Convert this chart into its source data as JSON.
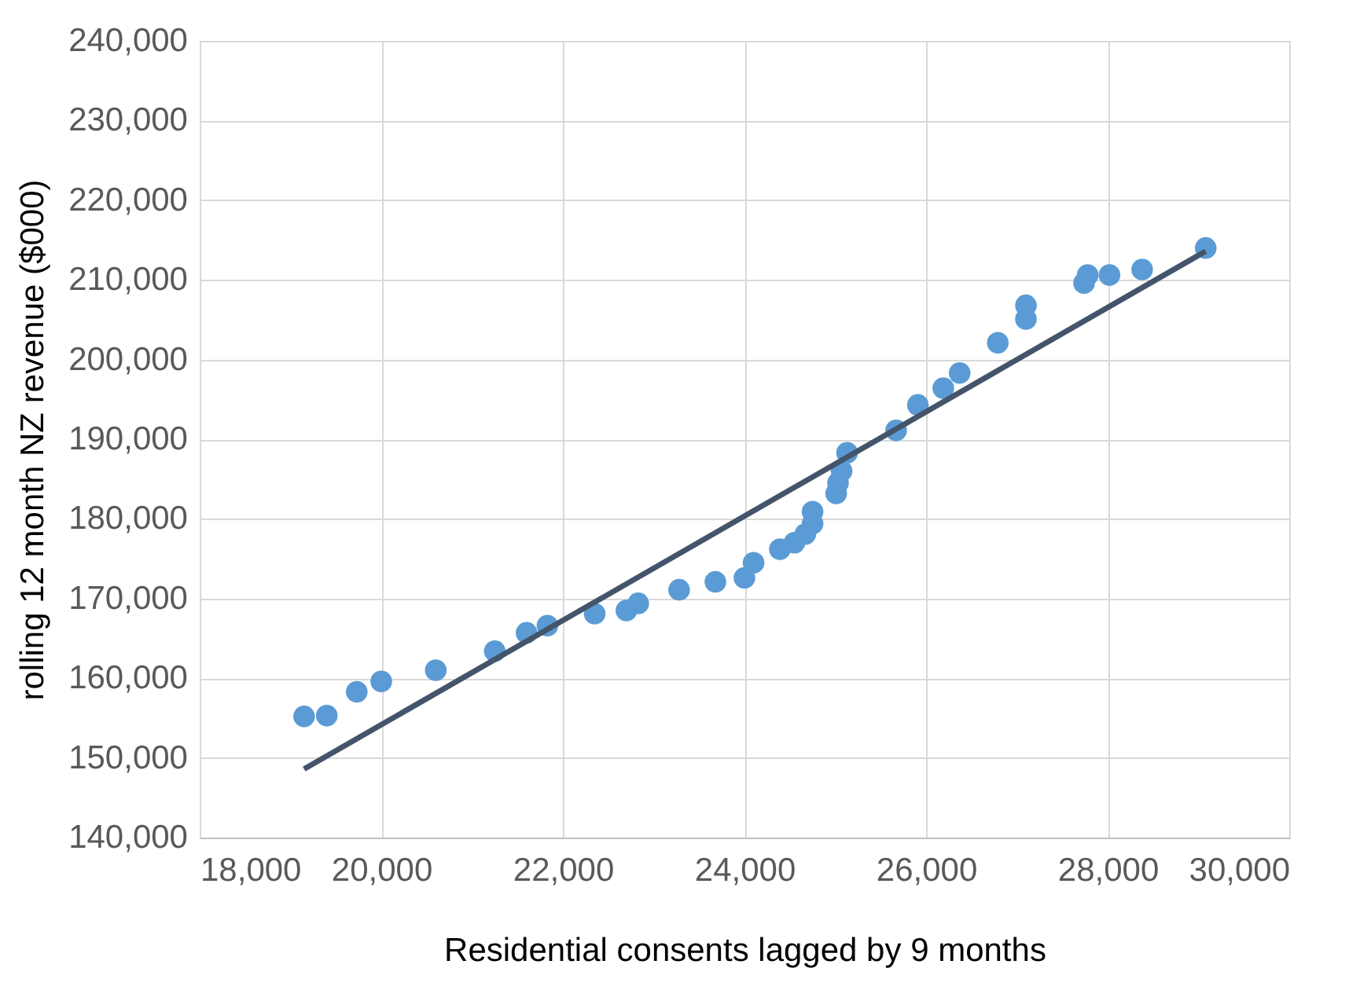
{
  "chart_data": {
    "type": "scatter",
    "xlabel": "Residential consents lagged by 9 months",
    "ylabel": "rolling 12 month NZ revenue ($000)",
    "series": [
      {
        "color": "#5b9bd5",
        "marker": "circle",
        "x": [
          19150,
          19400,
          19730,
          20000,
          20600,
          21250,
          21600,
          21830,
          22350,
          22700,
          22830,
          23280,
          23680,
          24000,
          24100,
          24390,
          24550,
          24670,
          24750,
          24750,
          25010,
          25030,
          25070,
          25110,
          25130,
          25670,
          25910,
          26190,
          26370,
          26790,
          27100,
          27100,
          27740,
          27780,
          28020,
          28380,
          29080
        ],
        "values": [
          155200,
          155300,
          158300,
          159600,
          161000,
          163400,
          165700,
          166600,
          168100,
          168500,
          169400,
          171100,
          172100,
          172600,
          174500,
          176200,
          177000,
          178100,
          179400,
          180900,
          183200,
          184500,
          186000,
          null,
          188300,
          191100,
          194300,
          196400,
          198300,
          202100,
          205100,
          206800,
          209600,
          210600,
          210600,
          211300,
          214000
        ]
      },
      {
        "type": "line",
        "color": "#44546a",
        "line_style": "solid",
        "x": [
          19150,
          29080
        ],
        "values": [
          148600,
          213600
        ]
      }
    ],
    "xlim": [
      18000,
      30000
    ],
    "xticks": [
      {
        "value": 18000,
        "label": "18,000"
      },
      {
        "value": 20000,
        "label": "20,000"
      },
      {
        "value": 22000,
        "label": "22,000"
      },
      {
        "value": 24000,
        "label": "24,000"
      },
      {
        "value": 26000,
        "label": "26,000"
      },
      {
        "value": 28000,
        "label": "28,000"
      },
      {
        "value": 30000,
        "label": "30,000"
      }
    ],
    "ylim": [
      140000,
      240000
    ],
    "yticks": [
      {
        "value": 140000,
        "label": "140,000"
      },
      {
        "value": 150000,
        "label": "150,000"
      },
      {
        "value": 160000,
        "label": "160,000"
      },
      {
        "value": 170000,
        "label": "170,000"
      },
      {
        "value": 180000,
        "label": "180,000"
      },
      {
        "value": 190000,
        "label": "190,000"
      },
      {
        "value": 200000,
        "label": "200,000"
      },
      {
        "value": 210000,
        "label": "210,000"
      },
      {
        "value": 220000,
        "label": "220,000"
      },
      {
        "value": 230000,
        "label": "230,000"
      },
      {
        "value": 240000,
        "label": "240,000"
      }
    ],
    "grid": true
  }
}
